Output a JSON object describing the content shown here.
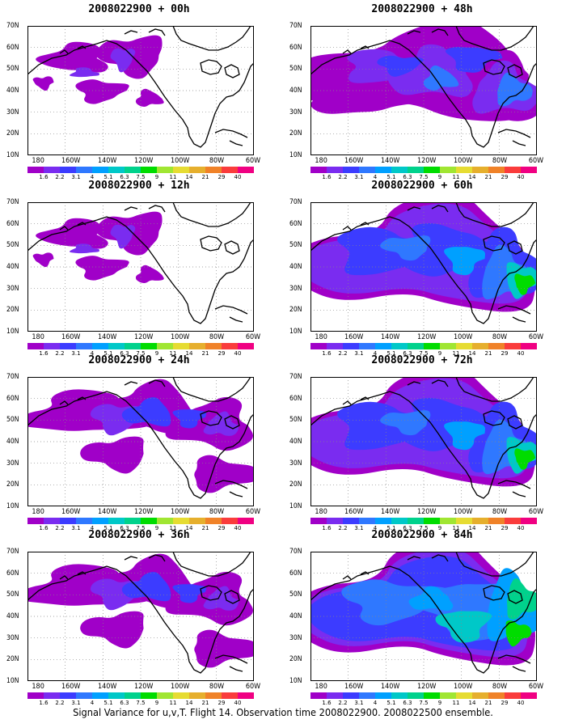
{
  "caption": "Signal Variance for u,v,T. Flight 14. Observation time 2008022900. 2008022500 ensemble.",
  "lat_labels": [
    "70N",
    "60N",
    "50N",
    "40N",
    "30N",
    "20N",
    "10N"
  ],
  "lon_labels": [
    "180",
    "160W",
    "140W",
    "120W",
    "100W",
    "80W",
    "60W"
  ],
  "colorbar": {
    "colors": [
      "#a000c8",
      "#7a2cf0",
      "#3c3cff",
      "#2f78ff",
      "#00a0ff",
      "#00c8c8",
      "#00d28c",
      "#00dc00",
      "#a0e632",
      "#e6dc32",
      "#e6af2d",
      "#f08228",
      "#fa3c3c",
      "#f00082"
    ],
    "labels": [
      "1.6",
      "2.2",
      "3.1",
      "4",
      "5.1",
      "6.3",
      "7.5",
      "9",
      "11",
      "14",
      "21",
      "29",
      "40"
    ]
  },
  "panels": [
    {
      "id": "p00",
      "title": "2008022900 + 00h",
      "level": 0
    },
    {
      "id": "p48",
      "title": "2008022900 + 48h",
      "level": 2
    },
    {
      "id": "p12",
      "title": "2008022900 + 12h",
      "level": 0
    },
    {
      "id": "p60",
      "title": "2008022900 + 60h",
      "level": 3
    },
    {
      "id": "p24",
      "title": "2008022900 + 24h",
      "level": 1
    },
    {
      "id": "p72",
      "title": "2008022900 + 72h",
      "level": 3
    },
    {
      "id": "p36",
      "title": "2008022900 + 36h",
      "level": 1
    },
    {
      "id": "p84",
      "title": "2008022900 + 84h",
      "level": 4
    }
  ]
}
